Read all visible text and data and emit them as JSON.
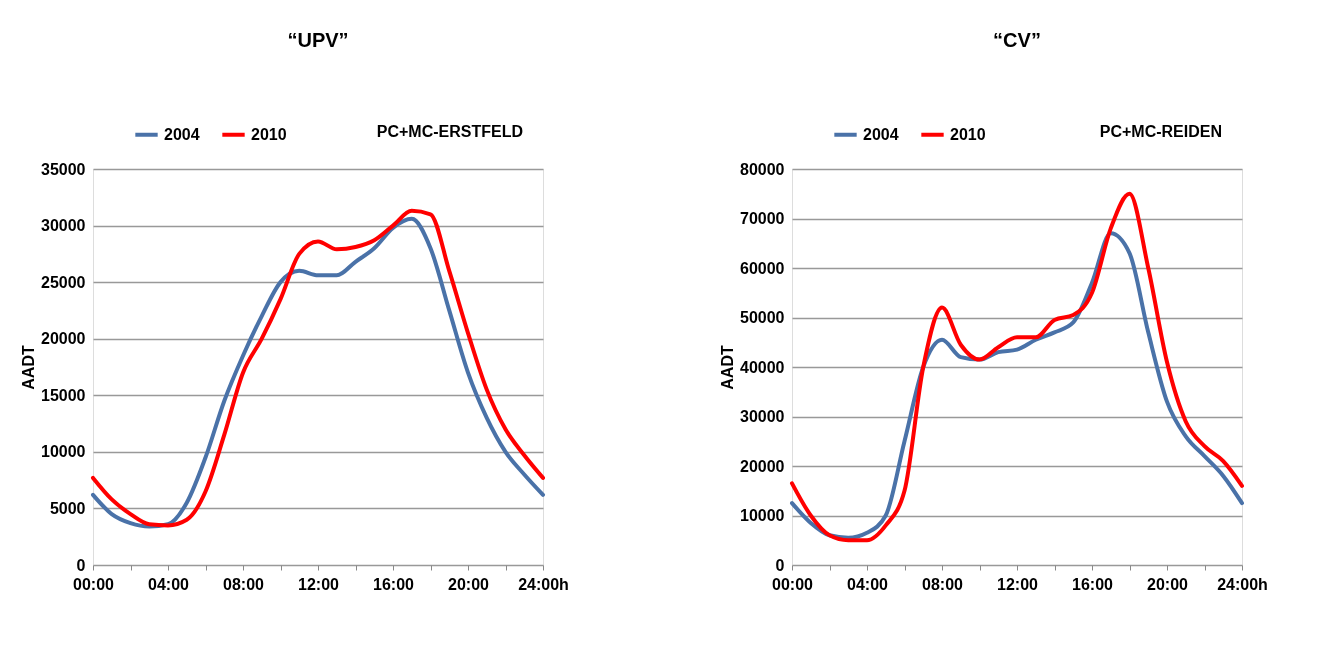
{
  "chart_data": [
    {
      "type": "line",
      "title": "“UPV”",
      "ylabel": "AADT",
      "annotations": [
        "PC+MC-ERSTFELD"
      ],
      "x": [
        0,
        1,
        2,
        3,
        4,
        5,
        6,
        7,
        8,
        9,
        10,
        11,
        12,
        13,
        14,
        15,
        16,
        17,
        18,
        19,
        20,
        21,
        22,
        23,
        24
      ],
      "series": [
        {
          "name": "2004",
          "color": "#4a72a8",
          "values": [
            6200,
            4500,
            3700,
            3400,
            3600,
            5500,
            9500,
            14500,
            18500,
            22000,
            25000,
            26000,
            25600,
            25600,
            26800,
            28000,
            29800,
            30600,
            28000,
            22500,
            17000,
            13000,
            10000,
            8000,
            6200
          ]
        },
        {
          "name": "2010",
          "color": "#ff0000",
          "values": [
            7700,
            5800,
            4500,
            3600,
            3500,
            4000,
            6500,
            11500,
            17000,
            20000,
            23500,
            27500,
            28600,
            27900,
            28100,
            28700,
            30000,
            31300,
            31000,
            26000,
            20500,
            15500,
            12000,
            9700,
            7700
          ]
        }
      ],
      "xlim": [
        0,
        24
      ],
      "xticks": [
        {
          "value": 0,
          "label": "00:00"
        },
        {
          "value": 2,
          "label": null
        },
        {
          "value": 4,
          "label": "04:00"
        },
        {
          "value": 6,
          "label": null
        },
        {
          "value": 8,
          "label": "08:00"
        },
        {
          "value": 10,
          "label": null
        },
        {
          "value": 12,
          "label": "12:00"
        },
        {
          "value": 14,
          "label": null
        },
        {
          "value": 16,
          "label": "16:00"
        },
        {
          "value": 18,
          "label": null
        },
        {
          "value": 20,
          "label": "20:00"
        },
        {
          "value": 22,
          "label": null
        },
        {
          "value": 24,
          "label": "24:00h"
        }
      ],
      "ylim": [
        0,
        35000
      ],
      "yticks": [
        0,
        5000,
        10000,
        15000,
        20000,
        25000,
        30000,
        35000
      ],
      "grid": "y",
      "legend": "top",
      "line_style": "solid",
      "marker": "none"
    },
    {
      "type": "line",
      "title": "“CV”",
      "ylabel": "AADT",
      "annotations": [
        "PC+MC-REIDEN"
      ],
      "x": [
        0,
        1,
        2,
        3,
        4,
        5,
        6,
        7,
        8,
        9,
        10,
        11,
        12,
        13,
        14,
        15,
        16,
        17,
        18,
        19,
        20,
        21,
        22,
        23,
        24
      ],
      "series": [
        {
          "name": "2004",
          "color": "#4a72a8",
          "values": [
            12500,
            8500,
            6000,
            5500,
            6500,
            10000,
            25000,
            40000,
            45500,
            42000,
            41500,
            43000,
            43500,
            45500,
            47000,
            49000,
            57000,
            67000,
            63000,
            47000,
            33000,
            26000,
            22000,
            18000,
            12500
          ]
        },
        {
          "name": "2010",
          "color": "#ff0000",
          "values": [
            16500,
            10000,
            6000,
            5000,
            5000,
            8000,
            15000,
            40000,
            52000,
            44500,
            41500,
            44000,
            46000,
            46000,
            49500,
            50500,
            55000,
            68000,
            75000,
            60000,
            41000,
            29000,
            24000,
            21000,
            16000
          ]
        }
      ],
      "xlim": [
        0,
        24
      ],
      "xticks": [
        {
          "value": 0,
          "label": "00:00"
        },
        {
          "value": 2,
          "label": null
        },
        {
          "value": 4,
          "label": "04:00"
        },
        {
          "value": 6,
          "label": null
        },
        {
          "value": 8,
          "label": "08:00"
        },
        {
          "value": 10,
          "label": null
        },
        {
          "value": 12,
          "label": "12:00"
        },
        {
          "value": 14,
          "label": null
        },
        {
          "value": 16,
          "label": "16:00"
        },
        {
          "value": 18,
          "label": null
        },
        {
          "value": 20,
          "label": "20:00"
        },
        {
          "value": 22,
          "label": null
        },
        {
          "value": 24,
          "label": "24:00h"
        }
      ],
      "ylim": [
        0,
        80000
      ],
      "yticks": [
        0,
        10000,
        20000,
        30000,
        40000,
        50000,
        60000,
        70000,
        80000
      ],
      "grid": "y",
      "legend": "top",
      "line_style": "solid",
      "marker": "none"
    }
  ]
}
